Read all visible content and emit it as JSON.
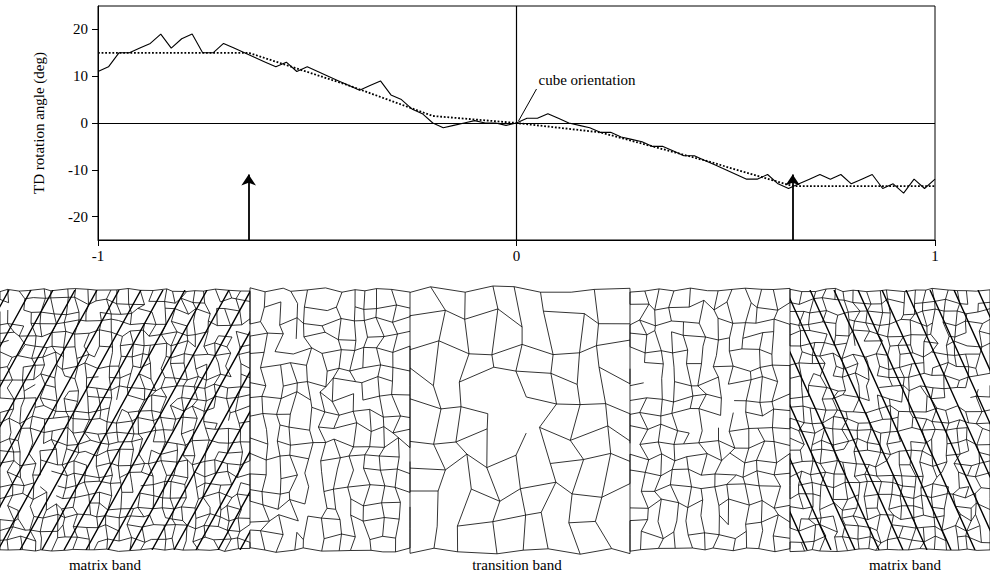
{
  "chart_data": {
    "type": "line",
    "ylabel": "TD rotation angle (deg)",
    "xlim": [
      -1,
      1
    ],
    "xticks": [
      -1,
      0,
      1
    ],
    "ylim": [
      -25,
      25
    ],
    "yticks": [
      -20,
      -10,
      0,
      10,
      20
    ],
    "grid": false,
    "series": [
      {
        "color": "#000000",
        "line_style": "solid",
        "x": [
          -1,
          -0.975,
          -0.95,
          -0.925,
          -0.9,
          -0.875,
          -0.85,
          -0.825,
          -0.8,
          -0.775,
          -0.75,
          -0.725,
          -0.7,
          -0.675,
          -0.65,
          -0.625,
          -0.6,
          -0.575,
          -0.55,
          -0.525,
          -0.5,
          -0.475,
          -0.45,
          -0.425,
          -0.4,
          -0.375,
          -0.35,
          -0.325,
          -0.3,
          -0.275,
          -0.25,
          -0.225,
          -0.2,
          -0.175,
          -0.15,
          -0.125,
          -0.1,
          -0.075,
          -0.05,
          -0.025,
          0,
          0.025,
          0.05,
          0.075,
          0.1,
          0.125,
          0.15,
          0.175,
          0.2,
          0.225,
          0.25,
          0.275,
          0.3,
          0.325,
          0.35,
          0.375,
          0.4,
          0.425,
          0.45,
          0.475,
          0.5,
          0.525,
          0.55,
          0.575,
          0.6,
          0.625,
          0.65,
          0.675,
          0.7,
          0.725,
          0.75,
          0.775,
          0.8,
          0.825,
          0.85,
          0.875,
          0.9,
          0.925,
          0.95,
          0.975,
          1
        ],
        "values": [
          11,
          12,
          15,
          15,
          16,
          17,
          19,
          16,
          18,
          19,
          15,
          15,
          17,
          16,
          15,
          14,
          13,
          12,
          13,
          11,
          12,
          11,
          10,
          9,
          8,
          7,
          8,
          9,
          6,
          5,
          3,
          2,
          0,
          -1,
          -0.5,
          0,
          0.5,
          0,
          0,
          -0.5,
          0,
          1,
          1,
          2,
          1,
          0,
          -0.5,
          -1,
          -2,
          -2,
          -3,
          -3.5,
          -4,
          -5,
          -5,
          -6,
          -7,
          -7,
          -8,
          -9,
          -10,
          -11,
          -12,
          -12,
          -11,
          -13,
          -14,
          -13,
          -12,
          -11,
          -12,
          -11,
          -13,
          -12,
          -11,
          -14,
          -13,
          -15,
          -12,
          -14,
          -12
        ]
      },
      {
        "color": "#000000",
        "line_style": "dotted",
        "x": [
          -1,
          -0.64,
          -0.4,
          -0.2,
          0,
          0.2,
          0.45,
          0.66,
          1
        ],
        "values": [
          15,
          15,
          8,
          1.5,
          0,
          -2,
          -8,
          -13.5,
          -13.5
        ]
      }
    ],
    "reference_lines": [
      {
        "axis": "x",
        "value": 0
      },
      {
        "axis": "y",
        "value": 0
      }
    ],
    "arrows": [
      {
        "x": -0.64,
        "y": -11
      },
      {
        "x": 0.66,
        "y": -11
      }
    ],
    "annotations": [
      {
        "text": "cube orientation",
        "x": 0,
        "y": 0
      }
    ]
  },
  "microstructure": {
    "labels": [
      "matrix band",
      "transition band",
      "matrix band"
    ]
  }
}
